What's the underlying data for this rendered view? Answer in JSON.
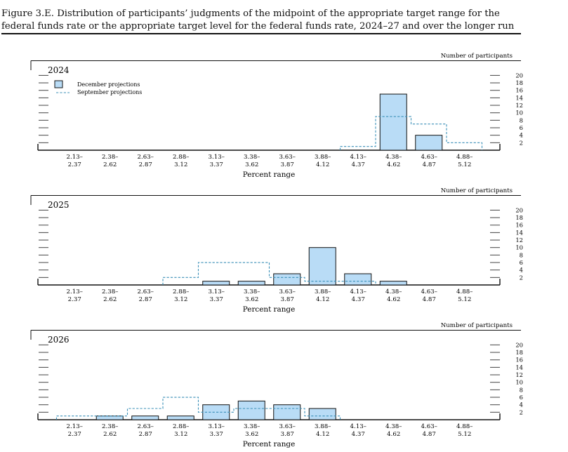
{
  "figure": {
    "title_line1": "Figure 3.E. Distribution of participants’ judgments of the midpoint of the appropriate target range for the",
    "title_line2": "federal funds rate or the appropriate target level for the federal funds rate, 2024–27 and over the longer run"
  },
  "colors": {
    "bar_fill": "#b9dcf6",
    "bar_stroke": "#111111",
    "september_line": "#3a8fb7"
  },
  "chart_data": [
    {
      "type": "bar",
      "title": "2024",
      "xlabel": "Percent range",
      "ylabel": "Number of participants",
      "categories": [
        "2.13–2.37",
        "2.38–2.62",
        "2.63–2.87",
        "2.88–3.12",
        "3.13–3.37",
        "3.38–3.62",
        "3.63–3.87",
        "3.88–4.12",
        "4.13–4.37",
        "4.38–4.62",
        "4.63–4.87",
        "4.88–5.12"
      ],
      "category_labels": [
        [
          "2.13–",
          "2.37"
        ],
        [
          "2.38–",
          "2.62"
        ],
        [
          "2.63–",
          "2.87"
        ],
        [
          "2.88–",
          "3.12"
        ],
        [
          "3.13–",
          "3.37"
        ],
        [
          "3.38–",
          "3.62"
        ],
        [
          "3.63–",
          "3.87"
        ],
        [
          "3.88–",
          "4.12"
        ],
        [
          "4.13–",
          "4.37"
        ],
        [
          "4.38–",
          "4.62"
        ],
        [
          "4.63–",
          "4.87"
        ],
        [
          "4.88–",
          "5.12"
        ]
      ],
      "series": [
        {
          "name": "December projections",
          "values": [
            0,
            0,
            0,
            0,
            0,
            0,
            0,
            0,
            0,
            15,
            4,
            0
          ]
        },
        {
          "name": "September projections",
          "values": [
            0,
            0,
            0,
            0,
            0,
            0,
            0,
            0,
            1,
            9,
            7,
            2
          ]
        }
      ],
      "yticks": [
        2,
        4,
        6,
        8,
        10,
        12,
        14,
        16,
        18,
        20
      ],
      "ylim": [
        0,
        20
      ],
      "legend": "top-left"
    },
    {
      "type": "bar",
      "title": "2025",
      "xlabel": "Percent range",
      "ylabel": "Number of participants",
      "categories": [
        "2.13–2.37",
        "2.38–2.62",
        "2.63–2.87",
        "2.88–3.12",
        "3.13–3.37",
        "3.38–3.62",
        "3.63–3.87",
        "3.88–4.12",
        "4.13–4.37",
        "4.38–4.62",
        "4.63–4.87",
        "4.88–5.12"
      ],
      "category_labels": [
        [
          "2.13–",
          "2.37"
        ],
        [
          "2.38–",
          "2.62"
        ],
        [
          "2.63–",
          "2.87"
        ],
        [
          "2.88–",
          "3.12"
        ],
        [
          "3.13–",
          "3.37"
        ],
        [
          "3.38–",
          "3.62"
        ],
        [
          "3.63–",
          "3.87"
        ],
        [
          "3.88–",
          "4.12"
        ],
        [
          "4.13–",
          "4.37"
        ],
        [
          "4.38–",
          "4.62"
        ],
        [
          "4.63–",
          "4.87"
        ],
        [
          "4.88–",
          "5.12"
        ]
      ],
      "series": [
        {
          "values": [
            0,
            0,
            0,
            0,
            1,
            1,
            3,
            10,
            3,
            1,
            0,
            0
          ]
        },
        {
          "values": [
            0,
            0,
            0,
            2,
            6,
            6,
            2,
            1,
            1,
            0,
            0,
            0
          ]
        }
      ],
      "yticks": [
        2,
        4,
        6,
        8,
        10,
        12,
        14,
        16,
        18,
        20
      ],
      "ylim": [
        0,
        20
      ]
    },
    {
      "type": "bar",
      "title": "2026",
      "xlabel": "Percent range",
      "ylabel": "Number of participants",
      "categories": [
        "2.13–2.37",
        "2.38–2.62",
        "2.63–2.87",
        "2.88–3.12",
        "3.13–3.37",
        "3.38–3.62",
        "3.63–3.87",
        "3.88–4.12",
        "4.13–4.37",
        "4.38–4.62",
        "4.63–4.87",
        "4.88–5.12"
      ],
      "category_labels": [
        [
          "2.13–",
          "2.37"
        ],
        [
          "2.38–",
          "2.62"
        ],
        [
          "2.63–",
          "2.87"
        ],
        [
          "2.88–",
          "3.12"
        ],
        [
          "3.13–",
          "3.37"
        ],
        [
          "3.38–",
          "3.62"
        ],
        [
          "3.63–",
          "3.87"
        ],
        [
          "3.88–",
          "4.12"
        ],
        [
          "4.13–",
          "4.37"
        ],
        [
          "4.38–",
          "4.62"
        ],
        [
          "4.63–",
          "4.87"
        ],
        [
          "4.88–",
          "5.12"
        ]
      ],
      "series": [
        {
          "values": [
            0,
            1,
            1,
            1,
            4,
            5,
            4,
            3,
            0,
            0,
            0,
            0
          ]
        },
        {
          "values": [
            1,
            1,
            3,
            6,
            2,
            3,
            3,
            1,
            0,
            0,
            0,
            0
          ]
        }
      ],
      "yticks": [
        2,
        4,
        6,
        8,
        10,
        12,
        14,
        16,
        18,
        20
      ],
      "ylim": [
        0,
        20
      ]
    }
  ]
}
